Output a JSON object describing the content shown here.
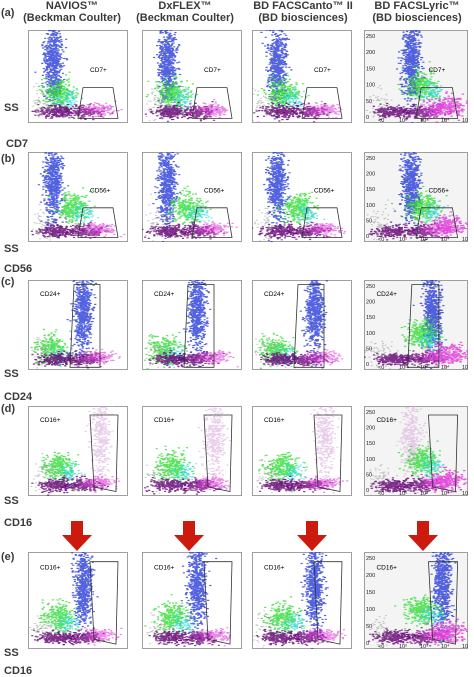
{
  "headers": [
    {
      "name": "NAVIOS™",
      "maker": "(Beckman Coulter)"
    },
    {
      "name": "DxFLEX™",
      "maker": "(Beckman Coulter)"
    },
    {
      "name": "BD FACSCanto™ II",
      "maker": "(BD biosciences)"
    },
    {
      "name": "BD FACSLyric™",
      "maker": "(BD biosciences)"
    }
  ],
  "rows": [
    {
      "label": "(a)",
      "marker": "CD7",
      "gate": "CD7+"
    },
    {
      "label": "(b)",
      "marker": "CD56",
      "gate": "CD56+"
    },
    {
      "label": "(c)",
      "marker": "CD24",
      "gate": "CD24+"
    },
    {
      "label": "(d)",
      "marker": "CD16",
      "gate": "CD16+"
    },
    {
      "label": "(e)",
      "marker": "CD16",
      "gate": "CD16+"
    }
  ],
  "y_axis_label": "SS",
  "lyric_y_ticks": [
    "0",
    "50",
    "100",
    "150",
    "200",
    "250"
  ],
  "lyric_x_ticks": [
    "<0",
    "10²",
    "10³",
    "10⁴",
    "10⁵"
  ],
  "colors": {
    "granulocytes": "#1a2fd6",
    "monocytes": "#33dd33",
    "lymphocytes": "#6a0a78",
    "magenta": "#e03ad8",
    "cyan": "#22d5e0",
    "arrow": "#cc1a0f"
  }
}
